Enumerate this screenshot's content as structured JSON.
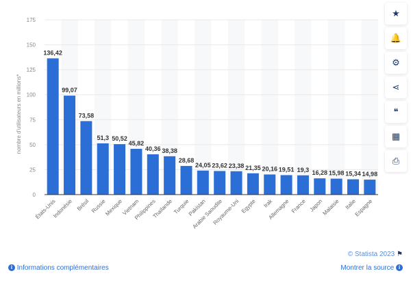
{
  "chart_data": {
    "type": "bar",
    "ylabel": "nombre d'utilisateurs en millions*",
    "ylim": [
      0,
      175
    ],
    "yticks": [
      0,
      25,
      50,
      75,
      100,
      125,
      150,
      175
    ],
    "grid": true,
    "categories": [
      "États-Unis",
      "Indonésie",
      "Brésil",
      "Russie",
      "Mexique",
      "Vietnam",
      "Philippines",
      "Thaïlande",
      "Turquie",
      "Pakistan",
      "Arabie Saoudite",
      "Royaume-Uni",
      "Egypte",
      "Irak",
      "Allemagne",
      "France",
      "Japon",
      "Malaisie",
      "Italie",
      "Espagne"
    ],
    "values": [
      136.42,
      99.07,
      73.58,
      51.3,
      50.52,
      45.82,
      40.36,
      38.38,
      28.68,
      24.05,
      23.62,
      23.38,
      21.35,
      20.16,
      19.51,
      19.3,
      16.28,
      15.98,
      15.34,
      14.98
    ],
    "labels": [
      "136,42",
      "99,07",
      "73,58",
      "51,3",
      "50,52",
      "45,82",
      "40,36",
      "38,38",
      "28,68",
      "24,05",
      "23,62",
      "23,38",
      "21,35",
      "20,16",
      "19,51",
      "19,3",
      "16,28",
      "15,98",
      "15,34",
      "14,98"
    ],
    "bar_color": "#2b6fd6"
  },
  "sidebar": [
    {
      "icon": "star-icon",
      "glyph": "★"
    },
    {
      "icon": "bell-icon",
      "glyph": "🔔"
    },
    {
      "icon": "gear-icon",
      "glyph": "⚙"
    },
    {
      "icon": "share-icon",
      "glyph": "⋖"
    },
    {
      "icon": "quote-icon",
      "glyph": "❝"
    },
    {
      "icon": "flag-icon",
      "glyph": "▦"
    },
    {
      "icon": "print-icon",
      "glyph": "⎙"
    }
  ],
  "footer": {
    "info_label": "Informations complémentaires",
    "copyright": "© Statista 2023",
    "source_label": "Montrer la source"
  }
}
